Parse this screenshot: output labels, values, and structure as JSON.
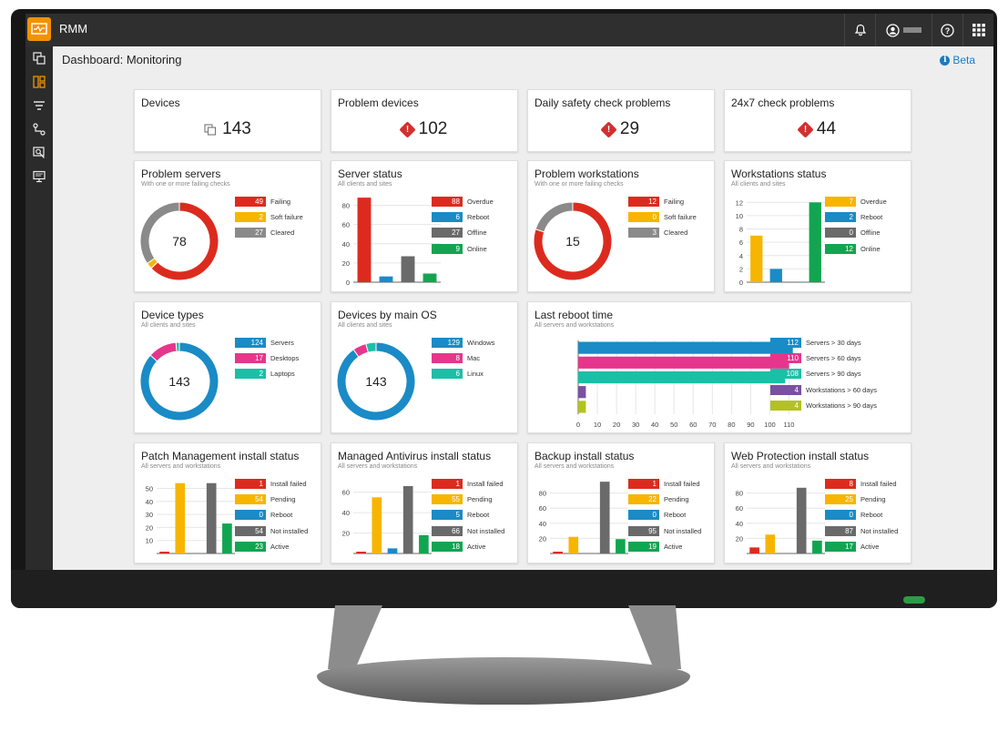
{
  "colors": {
    "red": "#dc2b1e",
    "orange": "#f7b500",
    "gray": "#777777",
    "blue": "#1a8bc6",
    "green": "#12a551",
    "pink": "#e5368c",
    "teal": "#1bbfa6",
    "purple": "#7b50a1",
    "olive": "#b3c221",
    "accent": "#f39200"
  },
  "app": {
    "name": "RMM"
  },
  "topbar_icons": [
    "bell-icon",
    "user-icon",
    "help-icon",
    "apps-grid-icon"
  ],
  "sidebar": [
    {
      "name": "devices-icon",
      "glyph": "⎘"
    },
    {
      "name": "dashboard-icon",
      "glyph": "▦"
    },
    {
      "name": "filter-icon",
      "glyph": "☰"
    },
    {
      "name": "workflow-icon",
      "glyph": "⚲"
    },
    {
      "name": "search-report-icon",
      "glyph": "⌕"
    },
    {
      "name": "monitor-icon",
      "glyph": "▭"
    }
  ],
  "page": {
    "title": "Dashboard: Monitoring",
    "beta": "Beta"
  },
  "summary": [
    {
      "title": "Devices",
      "value": "143",
      "icon": "devices-icon"
    },
    {
      "title": "Problem devices",
      "value": "102",
      "icon": "warning-icon"
    },
    {
      "title": "Daily safety check problems",
      "value": "29",
      "icon": "warning-icon"
    },
    {
      "title": "24x7 check problems",
      "value": "44",
      "icon": "warning-icon"
    }
  ],
  "cards": {
    "problem_servers": {
      "title": "Problem servers",
      "subtitle": "With one or more failing checks",
      "center": "78",
      "legend": [
        {
          "value": "49",
          "label": "Failing",
          "color": "#dc2b1e"
        },
        {
          "value": "2",
          "label": "Soft failure",
          "color": "#f7b500"
        },
        {
          "value": "27",
          "label": "Cleared",
          "color": "#8a8a8a"
        }
      ]
    },
    "server_status": {
      "title": "Server status",
      "subtitle": "All clients and sites",
      "yticks": [
        "80",
        "60",
        "40",
        "20",
        "0"
      ],
      "legend": [
        {
          "value": "88",
          "label": "Overdue",
          "color": "#dc2b1e"
        },
        {
          "value": "6",
          "label": "Reboot",
          "color": "#1a8bc6"
        },
        {
          "value": "27",
          "label": "Offline",
          "color": "#6a6a6a"
        },
        {
          "value": "9",
          "label": "Online",
          "color": "#12a551"
        }
      ]
    },
    "problem_workstations": {
      "title": "Problem workstations",
      "subtitle": "With one or more failing checks",
      "center": "15",
      "legend": [
        {
          "value": "12",
          "label": "Failing",
          "color": "#dc2b1e"
        },
        {
          "value": "0",
          "label": "Soft failure",
          "color": "#f7b500"
        },
        {
          "value": "3",
          "label": "Cleared",
          "color": "#8a8a8a"
        }
      ]
    },
    "workstations_status": {
      "title": "Workstations status",
      "subtitle": "All clients and sites",
      "yticks": [
        "12",
        "10",
        "8",
        "6",
        "4",
        "2",
        "0"
      ],
      "legend": [
        {
          "value": "7",
          "label": "Overdue",
          "color": "#f7b500"
        },
        {
          "value": "2",
          "label": "Reboot",
          "color": "#1a8bc6"
        },
        {
          "value": "0",
          "label": "Offline",
          "color": "#6a6a6a"
        },
        {
          "value": "12",
          "label": "Online",
          "color": "#12a551"
        }
      ]
    },
    "device_types": {
      "title": "Device types",
      "subtitle": "All clients and sites",
      "center": "143",
      "legend": [
        {
          "value": "124",
          "label": "Servers",
          "color": "#1a8bc6"
        },
        {
          "value": "17",
          "label": "Desktops",
          "color": "#e5368c"
        },
        {
          "value": "2",
          "label": "Laptops",
          "color": "#1bbfa6"
        }
      ]
    },
    "devices_by_os": {
      "title": "Devices by main OS",
      "subtitle": "All clients and sites",
      "center": "143",
      "legend": [
        {
          "value": "129",
          "label": "Windows",
          "color": "#1a8bc6"
        },
        {
          "value": "8",
          "label": "Mac",
          "color": "#e5368c"
        },
        {
          "value": "6",
          "label": "Linux",
          "color": "#1bbfa6"
        }
      ]
    },
    "last_reboot": {
      "title": "Last reboot time",
      "subtitle": "All servers and workstations",
      "xticks": [
        "0",
        "10",
        "20",
        "30",
        "40",
        "50",
        "60",
        "70",
        "80",
        "90",
        "100",
        "110"
      ],
      "legend": [
        {
          "value": "112",
          "label": "Servers > 30 days",
          "color": "#1a8bc6"
        },
        {
          "value": "110",
          "label": "Servers > 60 days",
          "color": "#e5368c"
        },
        {
          "value": "108",
          "label": "Servers > 90 days",
          "color": "#1bbfa6"
        },
        {
          "value": "4",
          "label": "Workstations > 60 days",
          "color": "#7b50a1"
        },
        {
          "value": "4",
          "label": "Workstations > 90 days",
          "color": "#b3c221"
        }
      ]
    },
    "patch": {
      "title": "Patch Management install status",
      "subtitle": "All servers and workstations",
      "yticks": [
        "50",
        "40",
        "30",
        "20",
        "10"
      ],
      "legend": [
        {
          "value": "1",
          "label": "Install failed",
          "color": "#dc2b1e"
        },
        {
          "value": "54",
          "label": "Pending",
          "color": "#f7b500"
        },
        {
          "value": "0",
          "label": "Reboot",
          "color": "#1a8bc6"
        },
        {
          "value": "54",
          "label": "Not installed",
          "color": "#6a6a6a"
        },
        {
          "value": "23",
          "label": "Active",
          "color": "#12a551"
        }
      ]
    },
    "antivirus": {
      "title": "Managed Antivirus install status",
      "subtitle": "All servers and workstations",
      "yticks": [
        "60",
        "40",
        "20"
      ],
      "legend": [
        {
          "value": "1",
          "label": "Install failed",
          "color": "#dc2b1e"
        },
        {
          "value": "55",
          "label": "Pending",
          "color": "#f7b500"
        },
        {
          "value": "5",
          "label": "Reboot",
          "color": "#1a8bc6"
        },
        {
          "value": "66",
          "label": "Not installed",
          "color": "#6a6a6a"
        },
        {
          "value": "18",
          "label": "Active",
          "color": "#12a551"
        }
      ]
    },
    "backup": {
      "title": "Backup install status",
      "subtitle": "All servers and workstations",
      "yticks": [
        "80",
        "60",
        "40",
        "20"
      ],
      "legend": [
        {
          "value": "1",
          "label": "Install failed",
          "color": "#dc2b1e"
        },
        {
          "value": "22",
          "label": "Pending",
          "color": "#f7b500"
        },
        {
          "value": "0",
          "label": "Reboot",
          "color": "#1a8bc6"
        },
        {
          "value": "95",
          "label": "Not installed",
          "color": "#6a6a6a"
        },
        {
          "value": "19",
          "label": "Active",
          "color": "#12a551"
        }
      ]
    },
    "web_protection": {
      "title": "Web Protection install status",
      "subtitle": "All servers and workstations",
      "yticks": [
        "80",
        "60",
        "40",
        "20"
      ],
      "legend": [
        {
          "value": "8",
          "label": "Install failed",
          "color": "#dc2b1e"
        },
        {
          "value": "25",
          "label": "Pending",
          "color": "#f7b500"
        },
        {
          "value": "0",
          "label": "Reboot",
          "color": "#1a8bc6"
        },
        {
          "value": "87",
          "label": "Not installed",
          "color": "#6a6a6a"
        },
        {
          "value": "17",
          "label": "Active",
          "color": "#12a551"
        }
      ]
    }
  },
  "chart_data": [
    {
      "type": "pie",
      "title": "Problem servers",
      "categories": [
        "Failing",
        "Soft failure",
        "Cleared"
      ],
      "values": [
        49,
        2,
        27
      ]
    },
    {
      "type": "bar",
      "title": "Server status",
      "categories": [
        "Overdue",
        "Reboot",
        "Offline",
        "Online"
      ],
      "values": [
        88,
        6,
        27,
        9
      ],
      "ylim": [
        0,
        90
      ]
    },
    {
      "type": "pie",
      "title": "Problem workstations",
      "categories": [
        "Failing",
        "Soft failure",
        "Cleared"
      ],
      "values": [
        12,
        0,
        3
      ]
    },
    {
      "type": "bar",
      "title": "Workstations status",
      "categories": [
        "Overdue",
        "Reboot",
        "Offline",
        "Online"
      ],
      "values": [
        7,
        2,
        0,
        12
      ],
      "ylim": [
        0,
        13
      ]
    },
    {
      "type": "pie",
      "title": "Device types",
      "categories": [
        "Servers",
        "Desktops",
        "Laptops"
      ],
      "values": [
        124,
        17,
        2
      ]
    },
    {
      "type": "pie",
      "title": "Devices by main OS",
      "categories": [
        "Windows",
        "Mac",
        "Linux"
      ],
      "values": [
        129,
        8,
        6
      ]
    },
    {
      "type": "bar",
      "orientation": "horizontal",
      "title": "Last reboot time",
      "categories": [
        "Servers > 30 days",
        "Servers > 60 days",
        "Servers > 90 days",
        "Workstations > 60 days",
        "Workstations > 90 days"
      ],
      "values": [
        112,
        110,
        108,
        4,
        4
      ],
      "xlim": [
        0,
        115
      ]
    },
    {
      "type": "bar",
      "title": "Patch Management install status",
      "categories": [
        "Install failed",
        "Pending",
        "Reboot",
        "Not installed",
        "Active"
      ],
      "values": [
        1,
        54,
        0,
        54,
        23
      ],
      "ylim": [
        0,
        58
      ]
    },
    {
      "type": "bar",
      "title": "Managed Antivirus install status",
      "categories": [
        "Install failed",
        "Pending",
        "Reboot",
        "Not installed",
        "Active"
      ],
      "values": [
        1,
        55,
        5,
        66,
        18
      ],
      "ylim": [
        0,
        74
      ]
    },
    {
      "type": "bar",
      "title": "Backup install status",
      "categories": [
        "Install failed",
        "Pending",
        "Reboot",
        "Not installed",
        "Active"
      ],
      "values": [
        1,
        22,
        0,
        95,
        19
      ],
      "ylim": [
        0,
        100
      ]
    },
    {
      "type": "bar",
      "title": "Web Protection install status",
      "categories": [
        "Install failed",
        "Pending",
        "Reboot",
        "Not installed",
        "Active"
      ],
      "values": [
        8,
        25,
        0,
        87,
        17
      ],
      "ylim": [
        0,
        100
      ]
    }
  ]
}
